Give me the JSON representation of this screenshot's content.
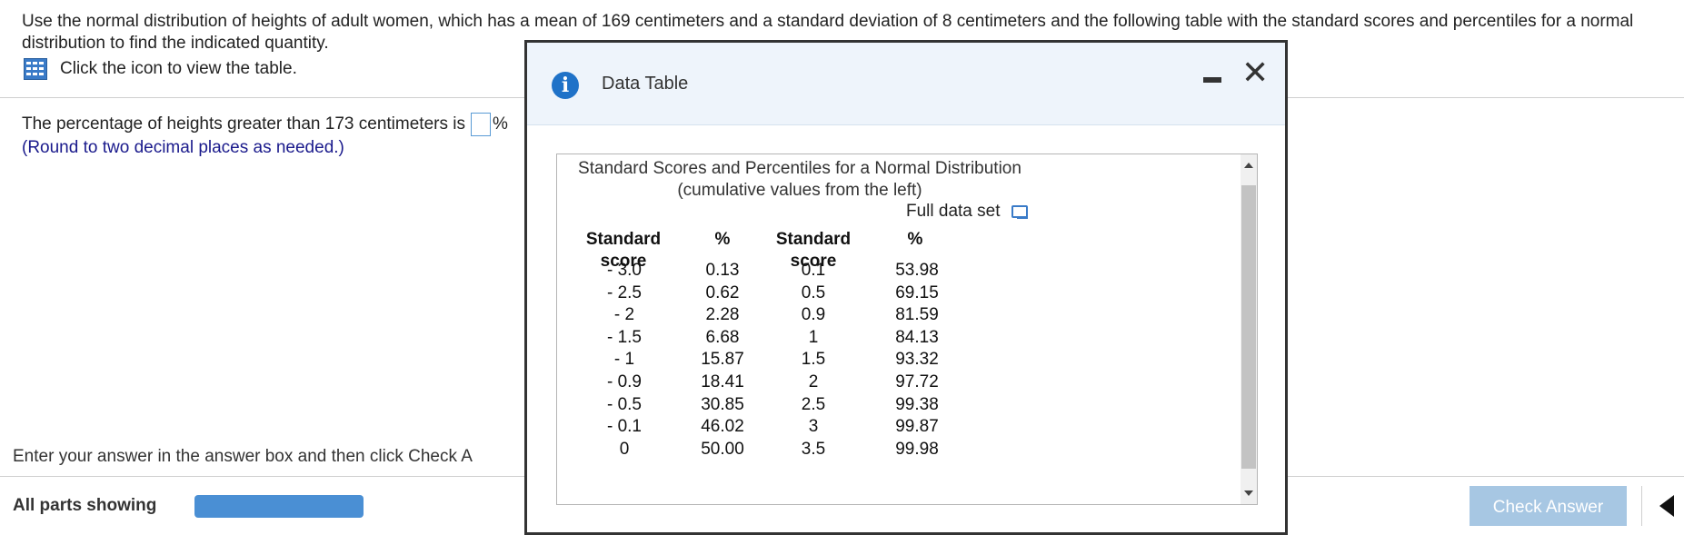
{
  "question": {
    "text": "Use the normal distribution of heights of adult women, which has a mean of 169 centimeters and a standard deviation of 8 centimeters and the following table with the standard scores and percentiles for a normal distribution to find the indicated quantity.",
    "table_link": "Click the icon to view the table."
  },
  "answer": {
    "prompt": "The percentage of heights greater than 173 centimeters is",
    "value": "",
    "unit": "%",
    "note": "(Round to two decimal places as needed.)"
  },
  "footer": {
    "instruction": "Enter your answer in the answer box and then click Check A",
    "all_parts": "All parts showing",
    "check_answer": "Check Answer"
  },
  "modal": {
    "title": "Data Table",
    "table_title": "Standard Scores and Percentiles for a Normal Distribution",
    "table_subtitle": "(cumulative values from the left)",
    "full_data_set": "Full data set",
    "headers": [
      "Standard score",
      "%",
      "Standard score",
      "%"
    ],
    "left_rows": [
      [
        "- 3.0",
        "0.13"
      ],
      [
        "- 2.5",
        "0.62"
      ],
      [
        "- 2",
        "2.28"
      ],
      [
        "- 1.5",
        "6.68"
      ],
      [
        "- 1",
        "15.87"
      ],
      [
        "- 0.9",
        "18.41"
      ],
      [
        "- 0.5",
        "30.85"
      ],
      [
        "- 0.1",
        "46.02"
      ],
      [
        "0",
        "50.00"
      ]
    ],
    "right_rows": [
      [
        "0.1",
        "53.98"
      ],
      [
        "0.5",
        "69.15"
      ],
      [
        "0.9",
        "81.59"
      ],
      [
        "1",
        "84.13"
      ],
      [
        "1.5",
        "93.32"
      ],
      [
        "2",
        "97.72"
      ],
      [
        "2.5",
        "99.38"
      ],
      [
        "3",
        "99.87"
      ],
      [
        "3.5",
        "99.98"
      ]
    ]
  },
  "colors": {
    "accent": "#1f72c8",
    "progress": "#4a8fd4",
    "check_button": "#a7c7e3",
    "note_text": "#1a1a8c"
  },
  "icons": {
    "table_icon": "table-grid-icon",
    "info_icon": "info-icon",
    "minimize_icon": "minimize-icon",
    "close_icon": "close-icon",
    "full_data_icon": "full-data-set-icon",
    "back_icon": "back-arrow-icon"
  }
}
